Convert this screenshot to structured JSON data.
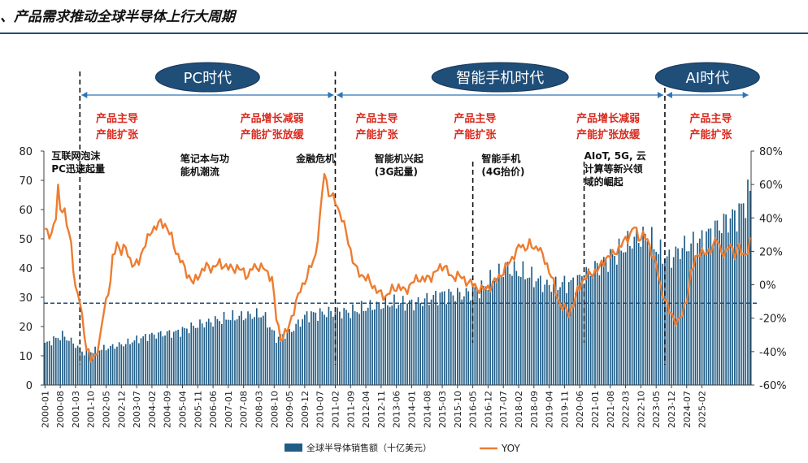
{
  "page_title": "、产品需求推动全球半导体上行大周期",
  "colors": {
    "bar": "#1f5c86",
    "line": "#ed7d31",
    "era_fill": "#1f4e79",
    "era_text": "#ffffff",
    "annotation_red": "#d92b1f",
    "dashed": "#1f4e79",
    "rule": "#1f4e79"
  },
  "chart_data": {
    "type": "bar+line",
    "title": "",
    "x_tick_labels": [
      "2000-01",
      "2000-08",
      "2001-03",
      "2001-10",
      "2002-05",
      "2002-12",
      "2003-07",
      "2004-02",
      "2004-09",
      "2005-04",
      "2005-11",
      "2006-06",
      "2007-01",
      "2007-08",
      "2008-03",
      "2008-10",
      "2009-05",
      "2009-12",
      "2010-07",
      "2011-02",
      "2011-09",
      "2012-04",
      "2012-11",
      "2013-06",
      "2014-01",
      "2014-08",
      "2015-03",
      "2015-10",
      "2016-05",
      "2016-12",
      "2017-07",
      "2018-02",
      "2018-09",
      "2019-04",
      "2019-11",
      "2020-06",
      "2021-01",
      "2021-08",
      "2022-03",
      "2022-10",
      "2023-05",
      "2023-12",
      "2024-07",
      "2025-02"
    ],
    "left_axis": {
      "label_series": "全球半导体销售额（十亿美元）",
      "ylim": [
        0,
        80
      ],
      "ticks": [
        "0",
        "10",
        "20",
        "30",
        "40",
        "50",
        "60",
        "70",
        "80"
      ]
    },
    "right_axis": {
      "label_series": "YOY",
      "ylim": [
        -60,
        80
      ],
      "ticks": [
        "-60%",
        "-40%",
        "-20%",
        "0%",
        "20%",
        "40%",
        "60%",
        "80%"
      ]
    },
    "horizontal_reference_right_axis": -11,
    "series": [
      {
        "name": "全球半导体销售额（十亿美元）",
        "type": "bar",
        "axis": "left",
        "anchors": [
          [
            0,
            14
          ],
          [
            8,
            17
          ],
          [
            12,
            15
          ],
          [
            18,
            11
          ],
          [
            24,
            12
          ],
          [
            30,
            13
          ],
          [
            36,
            14
          ],
          [
            48,
            17
          ],
          [
            60,
            18
          ],
          [
            72,
            21
          ],
          [
            84,
            23
          ],
          [
            96,
            24
          ],
          [
            100,
            24
          ],
          [
            106,
            16
          ],
          [
            112,
            18
          ],
          [
            120,
            24
          ],
          [
            132,
            25
          ],
          [
            140,
            25
          ],
          [
            150,
            27
          ],
          [
            160,
            28
          ],
          [
            170,
            28
          ],
          [
            182,
            31
          ],
          [
            192,
            31
          ],
          [
            200,
            33
          ],
          [
            206,
            37
          ],
          [
            212,
            40
          ],
          [
            220,
            38
          ],
          [
            230,
            34
          ],
          [
            242,
            35
          ],
          [
            252,
            40
          ],
          [
            262,
            45
          ],
          [
            270,
            50
          ],
          [
            276,
            51
          ],
          [
            282,
            45
          ],
          [
            286,
            43
          ],
          [
            292,
            47
          ],
          [
            300,
            49
          ],
          [
            306,
            53
          ],
          [
            312,
            56
          ],
          [
            318,
            59
          ],
          [
            323,
            66
          ]
        ]
      },
      {
        "name": "YOY",
        "type": "line",
        "axis": "right",
        "anchors": [
          [
            0,
            33
          ],
          [
            3,
            30
          ],
          [
            5,
            40
          ],
          [
            6,
            58
          ],
          [
            7,
            47
          ],
          [
            9,
            43
          ],
          [
            10,
            36
          ],
          [
            12,
            25
          ],
          [
            14,
            -3
          ],
          [
            16,
            -10
          ],
          [
            18,
            -28
          ],
          [
            19,
            -38
          ],
          [
            21,
            -45
          ],
          [
            23,
            -42
          ],
          [
            25,
            -35
          ],
          [
            27,
            -15
          ],
          [
            30,
            2
          ],
          [
            31,
            15
          ],
          [
            33,
            25
          ],
          [
            35,
            20
          ],
          [
            37,
            22
          ],
          [
            39,
            15
          ],
          [
            41,
            11
          ],
          [
            43,
            14
          ],
          [
            45,
            22
          ],
          [
            47,
            27
          ],
          [
            49,
            33
          ],
          [
            51,
            35
          ],
          [
            53,
            37
          ],
          [
            55,
            36
          ],
          [
            56,
            34
          ],
          [
            58,
            28
          ],
          [
            60,
            20
          ],
          [
            62,
            15
          ],
          [
            65,
            7
          ],
          [
            68,
            1
          ],
          [
            71,
            7
          ],
          [
            74,
            11
          ],
          [
            77,
            10
          ],
          [
            80,
            13
          ],
          [
            84,
            10
          ],
          [
            88,
            10
          ],
          [
            91,
            8
          ],
          [
            93,
            5
          ],
          [
            95,
            10
          ],
          [
            97,
            11
          ],
          [
            100,
            10
          ],
          [
            102,
            7
          ],
          [
            104,
            4
          ],
          [
            106,
            -20
          ],
          [
            108,
            -32
          ],
          [
            111,
            -28
          ],
          [
            114,
            -15
          ],
          [
            117,
            -3
          ],
          [
            120,
            5
          ],
          [
            124,
            18
          ],
          [
            126,
            40
          ],
          [
            128,
            68
          ],
          [
            130,
            55
          ],
          [
            133,
            50
          ],
          [
            136,
            40
          ],
          [
            139,
            26
          ],
          [
            141,
            15
          ],
          [
            143,
            8
          ],
          [
            145,
            6
          ],
          [
            148,
            3
          ],
          [
            150,
            0
          ],
          [
            153,
            -5
          ],
          [
            156,
            -7
          ],
          [
            159,
            -3
          ],
          [
            162,
            -1
          ],
          [
            165,
            -4
          ],
          [
            168,
            1
          ],
          [
            171,
            4
          ],
          [
            174,
            3
          ],
          [
            177,
            5
          ],
          [
            180,
            9
          ],
          [
            183,
            12
          ],
          [
            186,
            4
          ],
          [
            189,
            6
          ],
          [
            192,
            3
          ],
          [
            195,
            1
          ],
          [
            198,
            -2
          ],
          [
            201,
            -3
          ],
          [
            204,
            -1
          ],
          [
            207,
            3
          ],
          [
            210,
            8
          ],
          [
            213,
            14
          ],
          [
            216,
            20
          ],
          [
            218,
            24
          ],
          [
            220,
            22
          ],
          [
            222,
            24
          ],
          [
            224,
            22
          ],
          [
            226,
            23
          ],
          [
            228,
            17
          ],
          [
            230,
            12
          ],
          [
            232,
            5
          ],
          [
            234,
            -4
          ],
          [
            236,
            -12
          ],
          [
            238,
            -14
          ],
          [
            240,
            -17
          ],
          [
            242,
            -12
          ],
          [
            244,
            -4
          ],
          [
            246,
            2
          ],
          [
            248,
            5
          ],
          [
            251,
            7
          ],
          [
            254,
            10
          ],
          [
            257,
            16
          ],
          [
            260,
            18
          ],
          [
            263,
            22
          ],
          [
            266,
            27
          ],
          [
            268,
            30
          ],
          [
            270,
            35
          ],
          [
            272,
            28
          ],
          [
            274,
            30
          ],
          [
            276,
            26
          ],
          [
            278,
            20
          ],
          [
            280,
            12
          ],
          [
            282,
            -2
          ],
          [
            284,
            -8
          ],
          [
            286,
            -16
          ],
          [
            288,
            -20
          ],
          [
            290,
            -22
          ],
          [
            292,
            -18
          ],
          [
            294,
            -8
          ],
          [
            296,
            6
          ],
          [
            298,
            16
          ],
          [
            300,
            20
          ],
          [
            302,
            18
          ],
          [
            304,
            20
          ],
          [
            306,
            23
          ],
          [
            308,
            27
          ],
          [
            310,
            20
          ],
          [
            312,
            18
          ],
          [
            314,
            25
          ],
          [
            316,
            18
          ],
          [
            318,
            22
          ],
          [
            320,
            18
          ],
          [
            322,
            20
          ],
          [
            323,
            25
          ]
        ]
      }
    ],
    "vertical_markers": [
      {
        "month_index": 16,
        "style": "dashed-long"
      },
      {
        "month_index": 133,
        "style": "dashed-long"
      },
      {
        "month_index": 196,
        "style": "dashed-short"
      },
      {
        "month_index": 247,
        "style": "dashed-short"
      },
      {
        "month_index": 284,
        "style": "dashed-long"
      }
    ],
    "eras": [
      {
        "label": "PC时代",
        "start_index": 16,
        "end_index": 133
      },
      {
        "label": "智能手机时代",
        "start_index": 133,
        "end_index": 284
      },
      {
        "label": "AI时代",
        "start_index": 284,
        "end_index": 323
      }
    ],
    "red_annotations": [
      {
        "lines": [
          "产品主导",
          "产能扩张"
        ],
        "center_index": 33
      },
      {
        "lines": [
          "产品增长减弱",
          "产能扩张放缓"
        ],
        "center_index": 104
      },
      {
        "lines": [
          "产品主导",
          "产能扩张"
        ],
        "center_index": 152
      },
      {
        "lines": [
          "产品主导",
          "产能扩张"
        ],
        "center_index": 197
      },
      {
        "lines": [
          "产品增长减弱",
          "产能扩张放缓"
        ],
        "center_index": 258
      },
      {
        "lines": [
          "产品主导",
          "产能扩张"
        ],
        "center_index": 305
      }
    ],
    "black_annotations": [
      {
        "lines": [
          "互联网泡沫",
          "PC迅速起量"
        ],
        "left_index": 3,
        "value_top": 80
      },
      {
        "lines": [
          "笔记本与功",
          "能机潮流"
        ],
        "left_index": 62,
        "value_top": 79
      },
      {
        "lines": [
          "金融危机"
        ],
        "left_index": 115,
        "value_top": 79
      },
      {
        "lines": [
          "智能机兴起",
          "(3G起量)"
        ],
        "left_index": 151,
        "value_top": 79
      },
      {
        "lines": [
          "智能手机",
          "(4G抬价)"
        ],
        "left_index": 200,
        "value_top": 79
      },
      {
        "lines": [
          "AIoT, 5G, 云",
          "计算等新兴领",
          "域的崛起"
        ],
        "left_index": 247,
        "value_top": 80
      }
    ],
    "legend": [
      {
        "label": "全球半导体销售额（十亿美元）",
        "kind": "bar"
      },
      {
        "label": "YOY",
        "kind": "line"
      }
    ]
  }
}
